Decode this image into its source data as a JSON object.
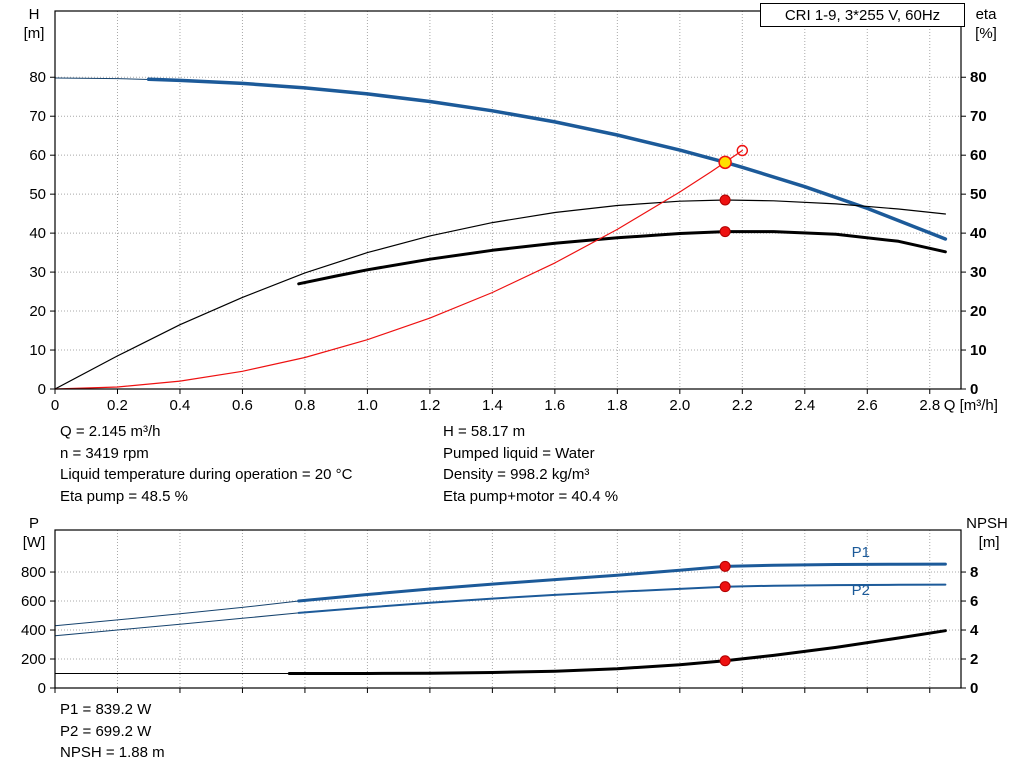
{
  "colors": {
    "curve_blue": "#1c5a99",
    "curve_thin_blue": "#16436e",
    "black": "#000000",
    "red": "#ee1111",
    "red_dark": "#b00000",
    "duty_yellow": "#ffe000",
    "grid": "#a8a8a8",
    "label_blue": "#1c5a99"
  },
  "info_top": {
    "left": [
      "Q = 2.145 m³/h",
      "n = 3419 rpm",
      "Liquid temperature during operation = 20 °C",
      "Eta pump = 48.5 %"
    ],
    "right": [
      "H = 58.17 m",
      "Pumped liquid = Water",
      "Density = 998.2 kg/m³",
      "Eta pump+motor = 40.4 %"
    ]
  },
  "info_bottom": [
    "P1 = 839.2 W",
    "P2 = 699.2 W",
    "NPSH = 1.88 m"
  ],
  "chart_data": [
    {
      "type": "line",
      "title": "CRI 1-9, 3*255 V, 60Hz",
      "x_axis": {
        "label": "Q [m³/h]",
        "min": 0,
        "max": 2.9,
        "ticks": [
          0,
          0.2,
          0.4,
          0.6,
          0.8,
          1.0,
          1.2,
          1.4,
          1.6,
          1.8,
          2.0,
          2.2,
          2.4,
          2.6,
          2.8
        ],
        "tick_labels": [
          "0",
          "0.2",
          "0.4",
          "0.6",
          "0.8",
          "1.0",
          "1.2",
          "1.4",
          "1.6",
          "1.8",
          "2.0",
          "2.2",
          "2.4",
          "2.6",
          "2.8"
        ]
      },
      "y_left": {
        "label": "H\n[m]",
        "min": 0,
        "max": 97,
        "ticks": [
          0,
          10,
          20,
          30,
          40,
          50,
          60,
          70,
          80
        ]
      },
      "y_right": {
        "label": "eta\n[%]",
        "min": 0,
        "max": 97,
        "ticks": [
          0,
          10,
          20,
          30,
          40,
          50,
          60,
          70,
          80
        ]
      },
      "grid": true,
      "series": [
        {
          "name": "pump-curve-base",
          "color": "#16436e",
          "width": 1,
          "axis": "left",
          "points": [
            [
              0,
              79.8
            ],
            [
              0.2,
              79.65
            ],
            [
              0.4,
              79.2
            ],
            [
              0.6,
              78.41
            ],
            [
              0.8,
              77.26
            ],
            [
              1.0,
              75.72
            ],
            [
              1.2,
              73.77
            ],
            [
              1.4,
              71.38
            ],
            [
              1.6,
              68.53
            ],
            [
              1.8,
              65.18
            ],
            [
              2.0,
              61.31
            ],
            [
              2.145,
              58.17
            ],
            [
              2.2,
              56.9
            ],
            [
              2.4,
              51.92
            ],
            [
              2.6,
              46.34
            ],
            [
              2.85,
              38.5
            ]
          ]
        },
        {
          "name": "pump-curve",
          "color": "#1c5a99",
          "width": 3.5,
          "axis": "left",
          "points": [
            [
              0.3,
              79.47
            ],
            [
              0.4,
              79.2
            ],
            [
              0.6,
              78.41
            ],
            [
              0.8,
              77.26
            ],
            [
              1.0,
              75.72
            ],
            [
              1.2,
              73.77
            ],
            [
              1.4,
              71.38
            ],
            [
              1.6,
              68.53
            ],
            [
              1.8,
              65.18
            ],
            [
              2.0,
              61.31
            ],
            [
              2.145,
              58.17
            ],
            [
              2.2,
              56.9
            ],
            [
              2.4,
              51.92
            ],
            [
              2.6,
              46.34
            ],
            [
              2.85,
              38.5
            ]
          ]
        },
        {
          "name": "eta-pump-curve",
          "color": "#000000",
          "width": 1.2,
          "axis": "right",
          "points": [
            [
              0,
              0
            ],
            [
              0.2,
              8.5
            ],
            [
              0.4,
              16.5
            ],
            [
              0.6,
              23.5
            ],
            [
              0.8,
              29.8
            ],
            [
              1.0,
              35.0
            ],
            [
              1.2,
              39.3
            ],
            [
              1.4,
              42.7
            ],
            [
              1.6,
              45.3
            ],
            [
              1.8,
              47.1
            ],
            [
              2.0,
              48.2
            ],
            [
              2.145,
              48.5
            ],
            [
              2.3,
              48.3
            ],
            [
              2.5,
              47.5
            ],
            [
              2.7,
              46.2
            ],
            [
              2.85,
              44.9
            ]
          ]
        },
        {
          "name": "eta-pump-motor-curve",
          "color": "#000000",
          "width": 3,
          "axis": "right",
          "points": [
            [
              0.78,
              27.0
            ],
            [
              0.9,
              29.0
            ],
            [
              1.0,
              30.6
            ],
            [
              1.2,
              33.3
            ],
            [
              1.4,
              35.6
            ],
            [
              1.6,
              37.4
            ],
            [
              1.8,
              38.8
            ],
            [
              2.0,
              39.9
            ],
            [
              2.145,
              40.4
            ],
            [
              2.3,
              40.4
            ],
            [
              2.5,
              39.7
            ],
            [
              2.7,
              37.9
            ],
            [
              2.85,
              35.2
            ]
          ]
        },
        {
          "name": "system-curve",
          "color": "#ee1111",
          "width": 1.2,
          "axis": "left",
          "points": [
            [
              0,
              0
            ],
            [
              0.2,
              0.51
            ],
            [
              0.4,
              2.02
            ],
            [
              0.6,
              4.55
            ],
            [
              0.8,
              8.09
            ],
            [
              1.0,
              12.64
            ],
            [
              1.2,
              18.2
            ],
            [
              1.4,
              24.77
            ],
            [
              1.6,
              32.36
            ],
            [
              1.8,
              40.95
            ],
            [
              2.0,
              50.56
            ],
            [
              2.1,
              55.74
            ],
            [
              2.145,
              58.17
            ],
            [
              2.2,
              61.2
            ]
          ]
        }
      ],
      "markers": [
        {
          "name": "system-curve-end-marker",
          "type": "open",
          "q": 2.2,
          "value": 61.2,
          "axis": "left"
        },
        {
          "name": "duty-point-marker",
          "type": "duty",
          "q": 2.145,
          "value": 58.17,
          "axis": "left"
        },
        {
          "name": "eta-pump-point-marker",
          "type": "dot",
          "q": 2.145,
          "value": 48.5,
          "axis": "right"
        },
        {
          "name": "eta-pump-motor-point-marker",
          "type": "dot",
          "q": 2.145,
          "value": 40.4,
          "axis": "right"
        }
      ],
      "curve_labels": []
    },
    {
      "type": "line",
      "title": "",
      "x_axis": {
        "label": "",
        "min": 0,
        "max": 2.9,
        "ticks": [
          0,
          0.2,
          0.4,
          0.6,
          0.8,
          1.0,
          1.2,
          1.4,
          1.6,
          1.8,
          2.0,
          2.2,
          2.4,
          2.6,
          2.8
        ],
        "tick_labels": []
      },
      "y_left": {
        "label": "P\n[W]",
        "min": 0,
        "max": 1090,
        "ticks": [
          0,
          200,
          400,
          600,
          800
        ]
      },
      "y_right": {
        "label": "NPSH\n [m]",
        "min": 0,
        "max": 10.9,
        "ticks": [
          0,
          2,
          4,
          6,
          8
        ]
      },
      "grid": true,
      "series": [
        {
          "name": "p1-curve-base",
          "color": "#16436e",
          "width": 1,
          "axis": "left",
          "points": [
            [
              0,
              430
            ],
            [
              0.2,
              470
            ],
            [
              0.4,
              512
            ],
            [
              0.6,
              556
            ],
            [
              0.78,
              600
            ]
          ]
        },
        {
          "name": "p1-curve",
          "color": "#1c5a99",
          "width": 3,
          "axis": "left",
          "points": [
            [
              0.78,
              600
            ],
            [
              1.0,
              645
            ],
            [
              1.2,
              683
            ],
            [
              1.4,
              717
            ],
            [
              1.6,
              748
            ],
            [
              1.8,
              778
            ],
            [
              2.0,
              812
            ],
            [
              2.145,
              839
            ],
            [
              2.3,
              847
            ],
            [
              2.5,
              852
            ],
            [
              2.7,
              854
            ],
            [
              2.85,
              855
            ]
          ]
        },
        {
          "name": "p2-curve-base",
          "color": "#16436e",
          "width": 1,
          "axis": "left",
          "points": [
            [
              0,
              360
            ],
            [
              0.2,
              400
            ],
            [
              0.4,
              440
            ],
            [
              0.6,
              481
            ],
            [
              0.78,
              518
            ]
          ]
        },
        {
          "name": "p2-curve",
          "color": "#1c5a99",
          "width": 2,
          "axis": "left",
          "points": [
            [
              0.78,
              518
            ],
            [
              1.0,
              556
            ],
            [
              1.2,
              588
            ],
            [
              1.4,
              617
            ],
            [
              1.6,
              642
            ],
            [
              1.8,
              664
            ],
            [
              2.0,
              684
            ],
            [
              2.145,
              699
            ],
            [
              2.3,
              706
            ],
            [
              2.5,
              710
            ],
            [
              2.7,
              712
            ],
            [
              2.85,
              713
            ]
          ]
        },
        {
          "name": "npsh-curve-base",
          "color": "#000000",
          "width": 1,
          "axis": "right",
          "points": [
            [
              0,
              1.0
            ],
            [
              0.75,
              1.0
            ]
          ]
        },
        {
          "name": "npsh-curve",
          "color": "#000000",
          "width": 3,
          "axis": "right",
          "points": [
            [
              0.75,
              1.0
            ],
            [
              1.0,
              1.0
            ],
            [
              1.2,
              1.02
            ],
            [
              1.4,
              1.07
            ],
            [
              1.6,
              1.16
            ],
            [
              1.8,
              1.33
            ],
            [
              2.0,
              1.6
            ],
            [
              2.145,
              1.88
            ],
            [
              2.3,
              2.25
            ],
            [
              2.5,
              2.8
            ],
            [
              2.7,
              3.45
            ],
            [
              2.85,
              3.95
            ]
          ]
        }
      ],
      "markers": [
        {
          "name": "p1-point-marker",
          "type": "dot",
          "q": 2.145,
          "value": 839.2,
          "axis": "left"
        },
        {
          "name": "p2-point-marker",
          "type": "dot",
          "q": 2.145,
          "value": 699.2,
          "axis": "left"
        },
        {
          "name": "npsh-point-marker",
          "type": "dot",
          "q": 2.145,
          "value": 1.88,
          "axis": "right"
        }
      ],
      "curve_labels": [
        {
          "name": "p1-curve-label",
          "text": "P1",
          "q": 2.55,
          "value": 905,
          "axis": "left"
        },
        {
          "name": "p2-curve-label",
          "text": "P2",
          "q": 2.55,
          "value": 640,
          "axis": "left"
        }
      ]
    }
  ]
}
